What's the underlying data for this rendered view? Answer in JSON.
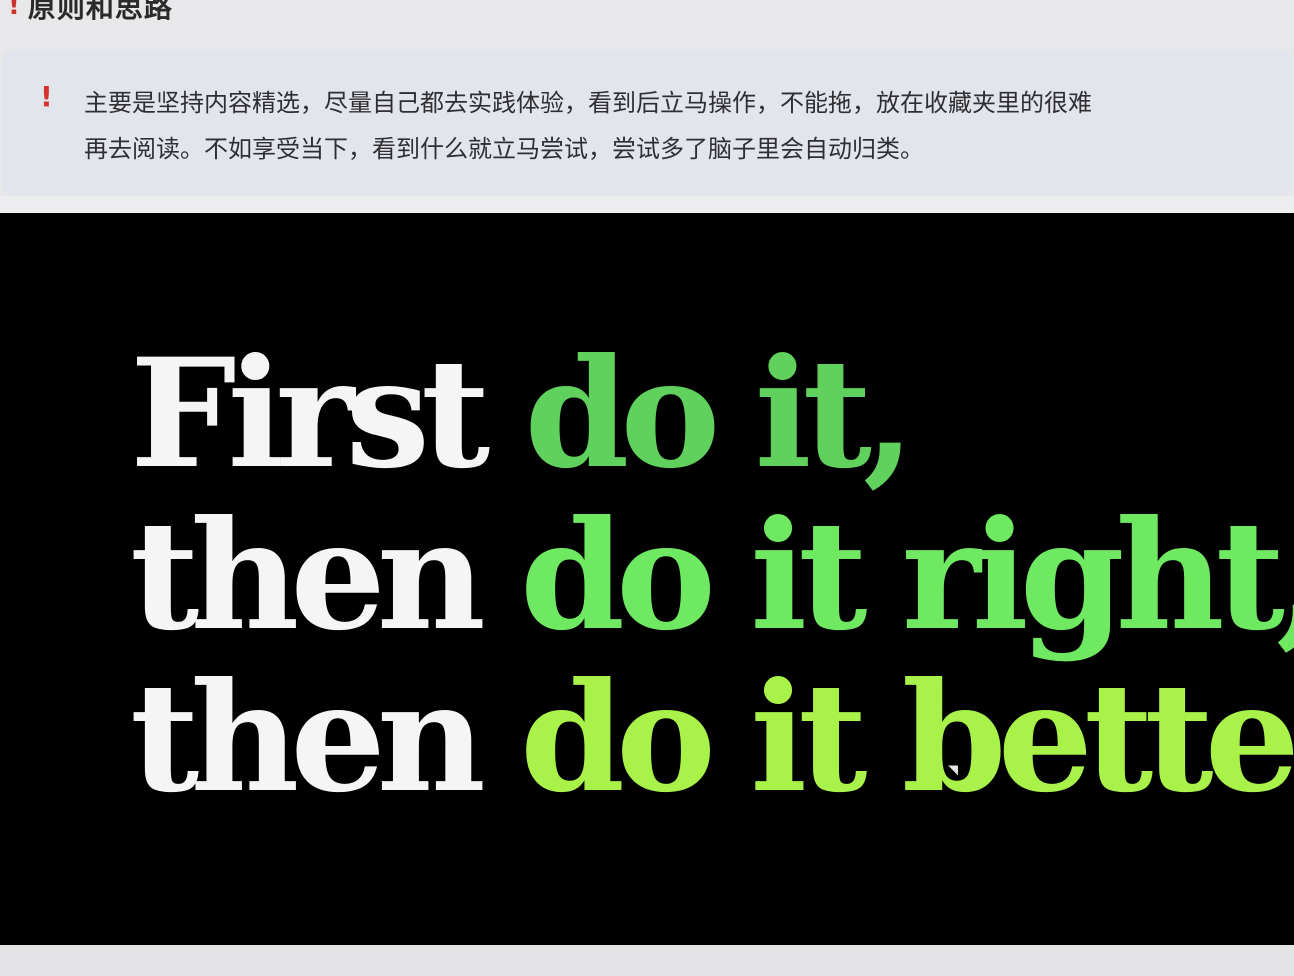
{
  "heading": {
    "icon": "!",
    "title": "原则和思路"
  },
  "callout": {
    "icon": "!",
    "text_line1": "主要是坚持内容精选，尽量自己都去实践体验，看到后立马操作，不能拖，放在收藏夹里的很难",
    "text_line2": "再去阅读。不如享受当下，看到什么就立马尝试，尝试多了脑子里会自动归类。"
  },
  "slogan": {
    "line1_white": "First ",
    "line1_green": "do it,",
    "line2_white": "then ",
    "line2_green": "do it right,",
    "line3_white": "then ",
    "line3_green": "do it better."
  },
  "colors": {
    "background": "#000000",
    "white_text": "#f5f5f5",
    "green_1": "#5fd15c",
    "green_2": "#6fe862",
    "green_3": "#a9f24a",
    "alert_red": "#d4332b"
  }
}
